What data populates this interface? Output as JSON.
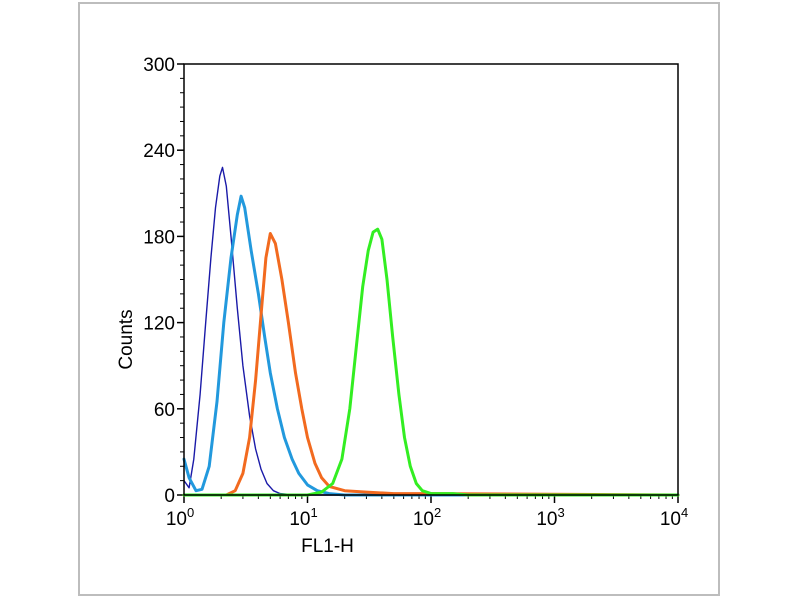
{
  "chart_data": {
    "type": "line",
    "title": "",
    "xlabel": "FL1-H",
    "ylabel": "Counts",
    "x_scale": "log",
    "xlim": [
      1,
      10000
    ],
    "ylim": [
      0,
      300
    ],
    "x_ticks": [
      {
        "base": "10",
        "exp": "0",
        "value": 1
      },
      {
        "base": "10",
        "exp": "1",
        "value": 10
      },
      {
        "base": "10",
        "exp": "2",
        "value": 100
      },
      {
        "base": "10",
        "exp": "3",
        "value": 1000
      },
      {
        "base": "10",
        "exp": "4",
        "value": 10000
      }
    ],
    "y_ticks": [
      "0",
      "60",
      "120",
      "180",
      "240",
      "300"
    ],
    "grid": false,
    "legend": "none",
    "series": [
      {
        "color": "#1a1aa8",
        "stroke": "thin",
        "points": [
          [
            1.0,
            10
          ],
          [
            1.1,
            5
          ],
          [
            1.2,
            25
          ],
          [
            1.35,
            70
          ],
          [
            1.5,
            120
          ],
          [
            1.65,
            165
          ],
          [
            1.8,
            200
          ],
          [
            1.95,
            222
          ],
          [
            2.05,
            228
          ],
          [
            2.2,
            215
          ],
          [
            2.4,
            180
          ],
          [
            2.7,
            130
          ],
          [
            3.0,
            90
          ],
          [
            3.4,
            55
          ],
          [
            3.8,
            32
          ],
          [
            4.2,
            18
          ],
          [
            4.7,
            8
          ],
          [
            5.3,
            3
          ],
          [
            6.0,
            1
          ],
          [
            8.0,
            0
          ],
          [
            20,
            0
          ],
          [
            10000,
            0
          ]
        ]
      },
      {
        "color": "#2299dd",
        "stroke": "medium",
        "points": [
          [
            1.0,
            25
          ],
          [
            1.1,
            12
          ],
          [
            1.25,
            3
          ],
          [
            1.4,
            4
          ],
          [
            1.6,
            20
          ],
          [
            1.85,
            65
          ],
          [
            2.1,
            120
          ],
          [
            2.4,
            165
          ],
          [
            2.7,
            195
          ],
          [
            2.9,
            208
          ],
          [
            3.1,
            200
          ],
          [
            3.5,
            170
          ],
          [
            4.0,
            140
          ],
          [
            4.5,
            110
          ],
          [
            5.0,
            85
          ],
          [
            5.7,
            60
          ],
          [
            6.5,
            40
          ],
          [
            7.5,
            25
          ],
          [
            8.5,
            15
          ],
          [
            10,
            7
          ],
          [
            12,
            3
          ],
          [
            15,
            1
          ],
          [
            20,
            0
          ],
          [
            10000,
            0
          ]
        ]
      },
      {
        "color": "#f26a1f",
        "stroke": "medium",
        "points": [
          [
            1.0,
            0
          ],
          [
            2.2,
            0
          ],
          [
            2.6,
            3
          ],
          [
            3.0,
            15
          ],
          [
            3.4,
            40
          ],
          [
            3.8,
            80
          ],
          [
            4.2,
            125
          ],
          [
            4.6,
            165
          ],
          [
            5.0,
            182
          ],
          [
            5.5,
            175
          ],
          [
            6.2,
            150
          ],
          [
            7.0,
            120
          ],
          [
            8.0,
            85
          ],
          [
            9.0,
            60
          ],
          [
            10,
            40
          ],
          [
            11.5,
            22
          ],
          [
            13,
            12
          ],
          [
            15,
            6
          ],
          [
            20,
            3
          ],
          [
            30,
            2
          ],
          [
            50,
            1
          ],
          [
            100,
            1
          ],
          [
            10000,
            0
          ]
        ]
      },
      {
        "color": "#33ee22",
        "stroke": "medium",
        "points": [
          [
            1.0,
            0
          ],
          [
            10,
            0
          ],
          [
            13,
            2
          ],
          [
            16,
            8
          ],
          [
            19,
            25
          ],
          [
            22,
            60
          ],
          [
            25,
            105
          ],
          [
            28,
            145
          ],
          [
            31,
            170
          ],
          [
            34,
            183
          ],
          [
            37,
            185
          ],
          [
            40,
            178
          ],
          [
            44,
            150
          ],
          [
            49,
            110
          ],
          [
            55,
            70
          ],
          [
            61,
            40
          ],
          [
            68,
            20
          ],
          [
            76,
            8
          ],
          [
            85,
            3
          ],
          [
            100,
            1
          ],
          [
            150,
            1
          ],
          [
            200,
            0
          ],
          [
            10000,
            0
          ]
        ]
      }
    ]
  }
}
